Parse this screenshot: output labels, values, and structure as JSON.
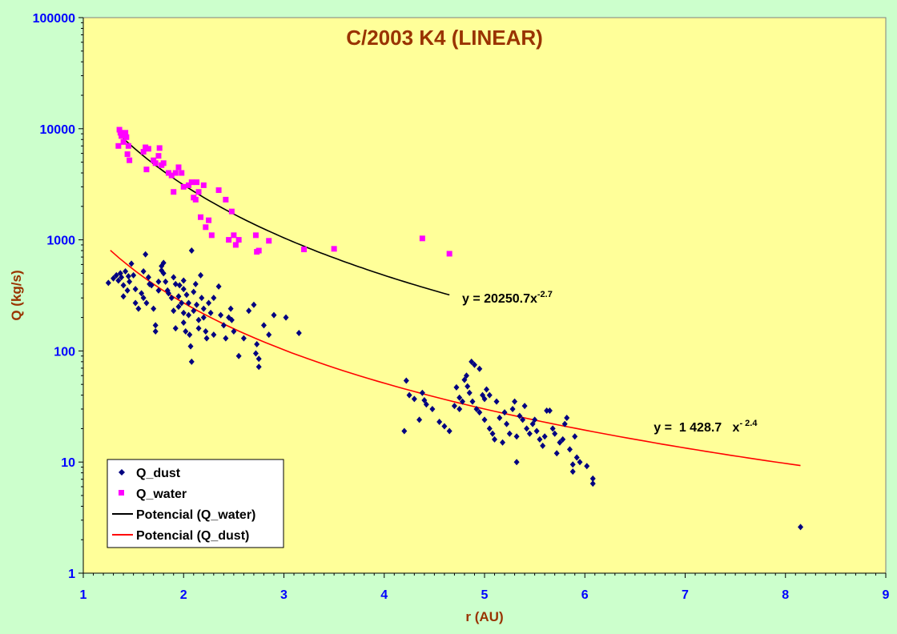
{
  "chart_data": {
    "type": "scatter",
    "title": "C/2003 K4 (LINEAR)",
    "xlabel": "r (AU)",
    "ylabel": "Q (kg/s)",
    "xlim": [
      1,
      9
    ],
    "ylim": [
      1,
      100000
    ],
    "yscale": "log",
    "xticks": [
      "1",
      "2",
      "3",
      "4",
      "5",
      "6",
      "7",
      "8",
      "9"
    ],
    "yticks": [
      "1",
      "10",
      "100",
      "1000",
      "10000",
      "100000"
    ],
    "grid": false,
    "legend_position": "bottom-left",
    "colors": {
      "plot_background": "#ffff99",
      "page_background": "#ccffcc",
      "dust": "#000080",
      "water": "#ff00ff",
      "fit_water": "#000000",
      "fit_dust": "#ff0000",
      "tick_labels": "#0000ff",
      "titles": "#993300"
    },
    "series": [
      {
        "name": "Q_dust",
        "marker": "diamond",
        "points": [
          [
            1.25,
            410
          ],
          [
            1.3,
            450
          ],
          [
            1.33,
            480
          ],
          [
            1.35,
            430
          ],
          [
            1.37,
            500
          ],
          [
            1.38,
            460
          ],
          [
            1.4,
            390
          ],
          [
            1.4,
            310
          ],
          [
            1.42,
            520
          ],
          [
            1.44,
            350
          ],
          [
            1.45,
            470
          ],
          [
            1.46,
            420
          ],
          [
            1.48,
            610
          ],
          [
            1.5,
            480
          ],
          [
            1.52,
            360
          ],
          [
            1.52,
            270
          ],
          [
            1.55,
            240
          ],
          [
            1.58,
            330
          ],
          [
            1.6,
            300
          ],
          [
            1.6,
            520
          ],
          [
            1.62,
            740
          ],
          [
            1.63,
            270
          ],
          [
            1.65,
            460
          ],
          [
            1.66,
            400
          ],
          [
            1.68,
            390
          ],
          [
            1.7,
            240
          ],
          [
            1.72,
            170
          ],
          [
            1.72,
            150
          ],
          [
            1.75,
            420
          ],
          [
            1.75,
            350
          ],
          [
            1.78,
            530
          ],
          [
            1.78,
            580
          ],
          [
            1.8,
            620
          ],
          [
            1.8,
            500
          ],
          [
            1.82,
            420
          ],
          [
            1.84,
            350
          ],
          [
            1.85,
            330
          ],
          [
            1.88,
            300
          ],
          [
            1.9,
            230
          ],
          [
            1.9,
            460
          ],
          [
            1.92,
            400
          ],
          [
            1.92,
            160
          ],
          [
            1.95,
            310
          ],
          [
            1.95,
            250
          ],
          [
            1.96,
            390
          ],
          [
            1.98,
            270
          ],
          [
            2.0,
            430
          ],
          [
            2.0,
            360
          ],
          [
            2.0,
            220
          ],
          [
            2.0,
            180
          ],
          [
            2.02,
            150
          ],
          [
            2.03,
            320
          ],
          [
            2.05,
            270
          ],
          [
            2.05,
            210
          ],
          [
            2.06,
            140
          ],
          [
            2.07,
            110
          ],
          [
            2.08,
            800
          ],
          [
            2.08,
            80
          ],
          [
            2.1,
            230
          ],
          [
            2.1,
            340
          ],
          [
            2.12,
            400
          ],
          [
            2.13,
            260
          ],
          [
            2.15,
            190
          ],
          [
            2.15,
            160
          ],
          [
            2.17,
            480
          ],
          [
            2.18,
            300
          ],
          [
            2.2,
            240
          ],
          [
            2.2,
            200
          ],
          [
            2.22,
            150
          ],
          [
            2.23,
            130
          ],
          [
            2.25,
            270
          ],
          [
            2.27,
            220
          ],
          [
            2.3,
            300
          ],
          [
            2.3,
            140
          ],
          [
            2.35,
            380
          ],
          [
            2.37,
            210
          ],
          [
            2.4,
            170
          ],
          [
            2.42,
            130
          ],
          [
            2.45,
            200
          ],
          [
            2.47,
            240
          ],
          [
            2.48,
            190
          ],
          [
            2.5,
            150
          ],
          [
            2.55,
            90
          ],
          [
            2.6,
            130
          ],
          [
            2.65,
            230
          ],
          [
            2.7,
            260
          ],
          [
            2.72,
            95
          ],
          [
            2.73,
            115
          ],
          [
            2.75,
            85
          ],
          [
            2.75,
            72
          ],
          [
            2.8,
            170
          ],
          [
            2.85,
            140
          ],
          [
            2.9,
            210
          ],
          [
            3.02,
            200
          ],
          [
            3.15,
            145
          ],
          [
            4.2,
            19
          ],
          [
            4.22,
            54
          ],
          [
            4.25,
            40
          ],
          [
            4.3,
            37
          ],
          [
            4.35,
            24
          ],
          [
            4.38,
            42
          ],
          [
            4.4,
            36
          ],
          [
            4.42,
            33
          ],
          [
            4.48,
            30
          ],
          [
            4.55,
            23
          ],
          [
            4.6,
            21
          ],
          [
            4.65,
            19
          ],
          [
            4.7,
            32
          ],
          [
            4.72,
            47
          ],
          [
            4.75,
            38
          ],
          [
            4.75,
            30
          ],
          [
            4.78,
            35
          ],
          [
            4.8,
            55
          ],
          [
            4.82,
            60
          ],
          [
            4.83,
            48
          ],
          [
            4.85,
            42
          ],
          [
            4.87,
            80
          ],
          [
            4.88,
            35
          ],
          [
            4.9,
            75
          ],
          [
            4.92,
            30
          ],
          [
            4.95,
            69
          ],
          [
            4.95,
            28
          ],
          [
            4.98,
            40
          ],
          [
            5.0,
            24
          ],
          [
            5.0,
            37
          ],
          [
            5.02,
            45
          ],
          [
            5.05,
            40
          ],
          [
            5.05,
            20
          ],
          [
            5.08,
            18
          ],
          [
            5.1,
            16
          ],
          [
            5.12,
            35
          ],
          [
            5.15,
            25
          ],
          [
            5.18,
            15
          ],
          [
            5.2,
            28
          ],
          [
            5.22,
            22
          ],
          [
            5.25,
            18
          ],
          [
            5.28,
            30
          ],
          [
            5.3,
            35
          ],
          [
            5.32,
            10
          ],
          [
            5.32,
            17
          ],
          [
            5.35,
            26
          ],
          [
            5.38,
            24
          ],
          [
            5.4,
            32
          ],
          [
            5.42,
            20
          ],
          [
            5.45,
            18
          ],
          [
            5.48,
            22
          ],
          [
            5.5,
            24
          ],
          [
            5.52,
            19
          ],
          [
            5.55,
            16
          ],
          [
            5.58,
            14
          ],
          [
            5.6,
            17
          ],
          [
            5.62,
            29
          ],
          [
            5.65,
            29
          ],
          [
            5.68,
            20
          ],
          [
            5.7,
            18
          ],
          [
            5.72,
            12
          ],
          [
            5.75,
            15
          ],
          [
            5.78,
            16
          ],
          [
            5.8,
            22
          ],
          [
            5.82,
            25
          ],
          [
            5.85,
            13
          ],
          [
            5.88,
            8.2
          ],
          [
            5.88,
            9.5
          ],
          [
            5.9,
            17
          ],
          [
            5.92,
            11
          ],
          [
            5.95,
            10
          ],
          [
            6.02,
            9.2
          ],
          [
            6.08,
            7.1
          ],
          [
            6.08,
            6.4
          ],
          [
            8.15,
            2.6
          ]
        ]
      },
      {
        "name": "Q_water",
        "marker": "square",
        "points": [
          [
            1.35,
            7000
          ],
          [
            1.36,
            9800
          ],
          [
            1.37,
            9200
          ],
          [
            1.38,
            8600
          ],
          [
            1.4,
            7600
          ],
          [
            1.42,
            9200
          ],
          [
            1.43,
            8400
          ],
          [
            1.44,
            5900
          ],
          [
            1.45,
            7000
          ],
          [
            1.46,
            5200
          ],
          [
            1.6,
            6200
          ],
          [
            1.62,
            6800
          ],
          [
            1.63,
            4300
          ],
          [
            1.65,
            6600
          ],
          [
            1.7,
            5200
          ],
          [
            1.72,
            4900
          ],
          [
            1.75,
            5700
          ],
          [
            1.76,
            6700
          ],
          [
            1.78,
            4700
          ],
          [
            1.8,
            4900
          ],
          [
            1.85,
            4000
          ],
          [
            1.88,
            3800
          ],
          [
            1.9,
            2700
          ],
          [
            1.92,
            4000
          ],
          [
            1.95,
            4500
          ],
          [
            1.98,
            4000
          ],
          [
            2.0,
            3000
          ],
          [
            2.05,
            3100
          ],
          [
            2.08,
            3300
          ],
          [
            2.1,
            2400
          ],
          [
            2.12,
            2300
          ],
          [
            2.13,
            3300
          ],
          [
            2.15,
            2700
          ],
          [
            2.17,
            1600
          ],
          [
            2.2,
            3100
          ],
          [
            2.22,
            1300
          ],
          [
            2.25,
            1500
          ],
          [
            2.28,
            1100
          ],
          [
            2.35,
            2800
          ],
          [
            2.42,
            2300
          ],
          [
            2.45,
            1000
          ],
          [
            2.48,
            1800
          ],
          [
            2.5,
            1100
          ],
          [
            2.52,
            900
          ],
          [
            2.55,
            1000
          ],
          [
            2.72,
            1100
          ],
          [
            2.73,
            780
          ],
          [
            2.75,
            800
          ],
          [
            2.85,
            980
          ],
          [
            3.2,
            820
          ],
          [
            3.5,
            830
          ],
          [
            4.38,
            1030
          ],
          [
            4.65,
            750
          ]
        ]
      }
    ],
    "fits": [
      {
        "name": "Potencial (Q_water)",
        "equation": "y = 20250.7x",
        "exponent": "-2.7",
        "a": 20250.7,
        "b": -2.7,
        "x_range": [
          1.35,
          4.65
        ]
      },
      {
        "name": "Potencial (Q_dust)",
        "equation": "y =  1 428.7   x",
        "exponent": "- 2.4",
        "a": 1428.7,
        "b": -2.4,
        "x_range": [
          1.27,
          8.15
        ]
      }
    ],
    "legend": [
      {
        "label": "Q_dust",
        "kind": "marker-diamond",
        "color": "#000080"
      },
      {
        "label": "Q_water",
        "kind": "marker-square",
        "color": "#ff00ff"
      },
      {
        "label": "Potencial (Q_water)",
        "kind": "line",
        "color": "#000000"
      },
      {
        "label": "Potencial (Q_dust)",
        "kind": "line",
        "color": "#ff0000"
      }
    ]
  }
}
